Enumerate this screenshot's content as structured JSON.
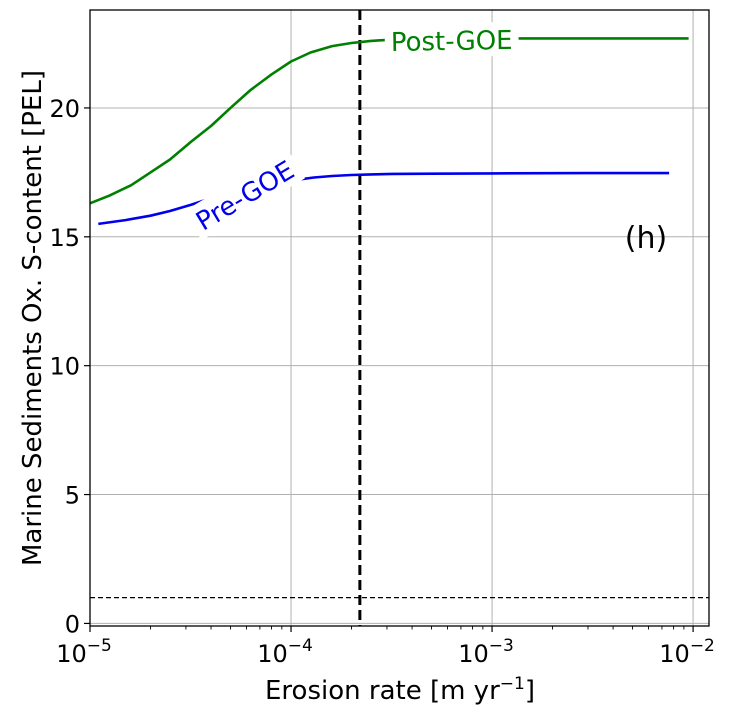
{
  "chart_data": {
    "type": "line",
    "xlabel": "Erosion rate [m yr",
    "xlabel_sup": "−1",
    "xlabel_end": "]",
    "ylabel": "Marine Sediments Ox. S-content [PEL]",
    "panel_label": "(h)",
    "xscale": "log",
    "xlim": [
      1e-05,
      0.012
    ],
    "ylim": [
      -0.1,
      23.8
    ],
    "grid": true,
    "x_ticks": [
      {
        "value": 1e-05,
        "base": "10",
        "exp": "−5"
      },
      {
        "value": 0.0001,
        "base": "10",
        "exp": "−4"
      },
      {
        "value": 0.001,
        "base": "10",
        "exp": "−3"
      },
      {
        "value": 0.01,
        "base": "10",
        "exp": "−2"
      }
    ],
    "y_ticks": [
      {
        "value": 0,
        "label": "0"
      },
      {
        "value": 5,
        "label": "5"
      },
      {
        "value": 10,
        "label": "10"
      },
      {
        "value": 15,
        "label": "15"
      },
      {
        "value": 20,
        "label": "20"
      }
    ],
    "series": [
      {
        "name": "Post-GOE",
        "color": "#008000",
        "x": [
          1e-05,
          1.25e-05,
          1.6e-05,
          2e-05,
          2.5e-05,
          3.2e-05,
          4e-05,
          5e-05,
          6.3e-05,
          8e-05,
          0.0001,
          0.000125,
          0.00016,
          0.0002,
          0.00025,
          0.00032,
          0.0004,
          0.0005,
          0.0007,
          0.001,
          0.002,
          0.004,
          0.0095
        ],
        "y": [
          16.3,
          16.6,
          17.0,
          17.5,
          18.0,
          18.7,
          19.3,
          20.0,
          20.7,
          21.3,
          21.8,
          22.15,
          22.4,
          22.52,
          22.6,
          22.65,
          22.67,
          22.68,
          22.69,
          22.7,
          22.7,
          22.7,
          22.7
        ],
        "label_text": "Post-GOE",
        "label_at": {
          "x": 0.00063,
          "y": 22.6,
          "angle": -1
        }
      },
      {
        "name": "Pre-GOE",
        "color": "#0000ee",
        "x": [
          1.1e-05,
          1.5e-05,
          2e-05,
          2.5e-05,
          3.2e-05,
          4e-05,
          5e-05,
          6.3e-05,
          8e-05,
          0.0001,
          0.00013,
          0.00016,
          0.0002,
          0.00025,
          0.00032,
          0.0005,
          0.001,
          0.003,
          0.0076
        ],
        "y": [
          15.5,
          15.65,
          15.82,
          16.0,
          16.25,
          16.5,
          16.72,
          16.9,
          17.05,
          17.18,
          17.3,
          17.36,
          17.4,
          17.42,
          17.44,
          17.45,
          17.46,
          17.47,
          17.47
        ],
        "label_text": "Pre-GOE",
        "label_at": {
          "x": 5.9e-05,
          "y": 16.6,
          "angle": -31
        }
      }
    ],
    "reference_lines": [
      {
        "orientation": "vertical",
        "value": 0.00022,
        "style": "dashed",
        "color": "#000000",
        "width": 3
      },
      {
        "orientation": "horizontal",
        "value": 1,
        "style": "dashed",
        "color": "#000000",
        "width": 1.3
      }
    ]
  }
}
